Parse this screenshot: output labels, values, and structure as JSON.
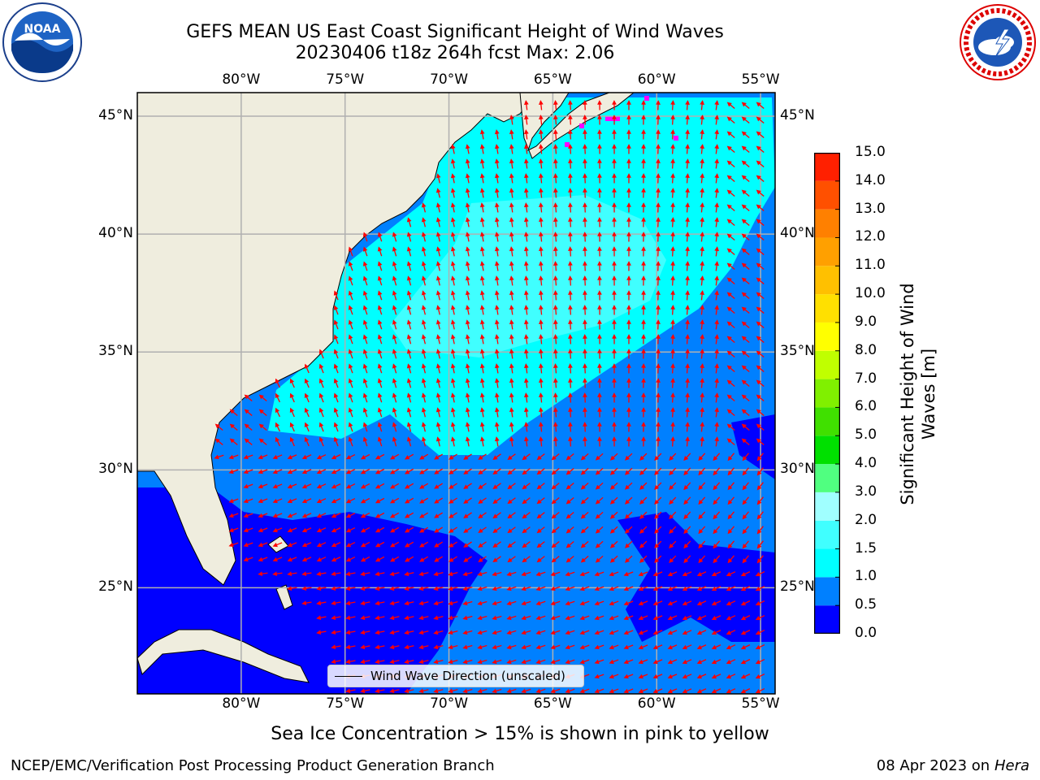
{
  "title": {
    "line1": "GEFS MEAN US East Coast Significant Height of Wind Waves",
    "line2": "20230406 t18z 264h fcst   Max: 2.06"
  },
  "logos": {
    "left": {
      "name": "noaa-logo",
      "text": "NOAA"
    },
    "right": {
      "name": "national-weather-service-logo",
      "text": "NATIONAL WEATHER SERVICE"
    }
  },
  "map": {
    "lon_labels": [
      "80°W",
      "75°W",
      "70°W",
      "65°W",
      "60°W",
      "55°W"
    ],
    "lat_labels": [
      "45°N",
      "40°N",
      "35°N",
      "30°N",
      "25°N"
    ],
    "extent": {
      "lon_min": -85,
      "lon_max": -54.3,
      "lat_min": 20.5,
      "lat_max": 46
    },
    "legend_label": "Wind Wave Direction (unscaled)",
    "arrow_color": "#ff0000",
    "land_color": "#efedde",
    "grid": true
  },
  "colorbar": {
    "label": "Significant Height of Wind Waves [m]",
    "ticks": [
      "0.0",
      "0.5",
      "1.0",
      "1.5",
      "2.0",
      "3.0",
      "4.0",
      "5.0",
      "6.0",
      "7.0",
      "8.0",
      "9.0",
      "10.0",
      "11.0",
      "12.0",
      "13.0",
      "14.0",
      "15.0"
    ],
    "colors": [
      "#0000ff",
      "#0080ff",
      "#00ffff",
      "#40ffff",
      "#a0ffff",
      "#50ff80",
      "#00e000",
      "#40e000",
      "#80f000",
      "#c0ff00",
      "#ffff00",
      "#ffe000",
      "#ffc000",
      "#ffa000",
      "#ff8000",
      "#ff5000",
      "#ff2000"
    ]
  },
  "ice_note": "Sea Ice Concentration > 15% is shown in pink to yellow",
  "footer": {
    "left": "NCEP/EMC/Verification Post Processing Product Generation Branch",
    "date": "08 Apr 2023 on ",
    "host": "Hera"
  }
}
